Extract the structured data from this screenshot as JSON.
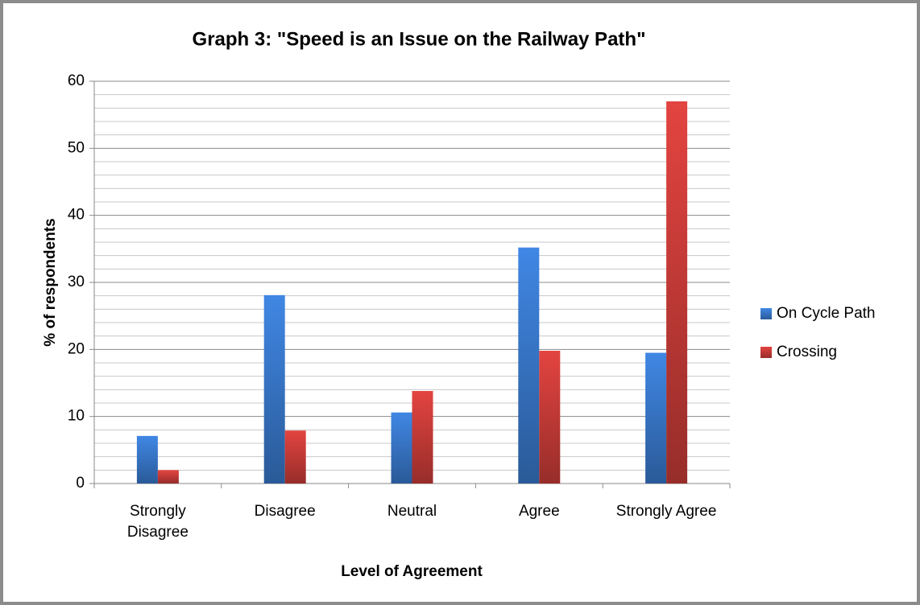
{
  "chart_data": {
    "type": "bar",
    "title": "Graph 3: \"Speed is an Issue on the Railway Path\"",
    "xlabel": "Level of Agreement",
    "ylabel": "% of respondents",
    "categories": [
      "Strongly Disagree",
      "Disagree",
      "Neutral",
      "Agree",
      "Strongly Agree"
    ],
    "series": [
      {
        "name": "On Cycle Path",
        "color": "#3b7dd3",
        "values": [
          7.1,
          28.1,
          10.6,
          35.2,
          19.5
        ]
      },
      {
        "name": "Crossing",
        "color": "#d23f3b",
        "values": [
          2.0,
          7.9,
          13.8,
          19.8,
          57.0
        ]
      }
    ],
    "ylim": [
      0,
      60
    ],
    "yticks": [
      0,
      10,
      20,
      30,
      40,
      50,
      60
    ],
    "yminorticks": [
      2,
      4,
      6,
      8,
      12,
      14,
      16,
      18,
      22,
      24,
      26,
      28,
      32,
      34,
      36,
      38,
      42,
      44,
      46,
      48,
      52,
      54,
      56,
      58
    ],
    "grid": true,
    "legend": "right"
  }
}
